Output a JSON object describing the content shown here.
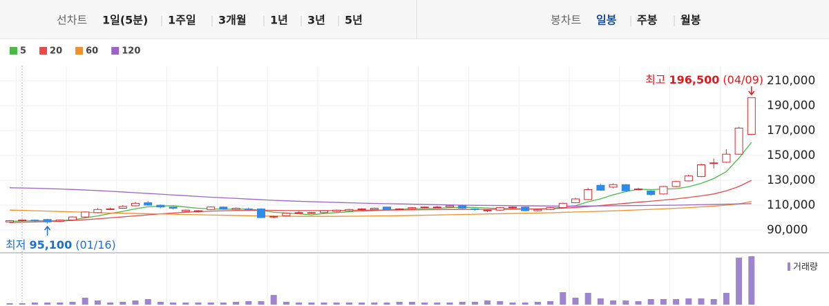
{
  "toolbar": {
    "line_chart": {
      "label": "선차트",
      "options": [
        "1일(5분)",
        "1주일",
        "3개월",
        "1년",
        "3년",
        "5년"
      ]
    },
    "candle_chart": {
      "label": "봉차트",
      "options": [
        "일봉",
        "주봉",
        "월봉"
      ],
      "selected": 0
    }
  },
  "chart_data": [
    {
      "type": "candlestick",
      "up_color": "#d9262f",
      "down_color": "#2f8be6",
      "ylim": [
        72000,
        222000
      ],
      "yticks": [
        {
          "value": 90000,
          "label": "90,000"
        },
        {
          "value": 110000,
          "label": "110,000"
        },
        {
          "value": 130000,
          "label": "130,000"
        },
        {
          "value": 150000,
          "label": "150,000"
        },
        {
          "value": 170000,
          "label": "170,000"
        },
        {
          "value": 190000,
          "label": "190,000"
        },
        {
          "value": 210000,
          "label": "210,000"
        }
      ],
      "grid": true,
      "open": [
        96500,
        97500,
        98000,
        98500,
        97000,
        98000,
        100500,
        104000,
        107000,
        107500,
        109500,
        112000,
        110000,
        108500,
        105000,
        105000,
        106500,
        108500,
        106500,
        107000,
        107000,
        100500,
        101500,
        104000,
        104000,
        104000,
        105000,
        105500,
        106500,
        106500,
        108500,
        106500,
        107000,
        108000,
        108500,
        108500,
        109500,
        107000,
        105500,
        106000,
        108000,
        108500,
        105500,
        106500,
        108000,
        112000,
        114500,
        126000,
        124500,
        126500,
        123000,
        121500,
        119000,
        125000,
        129500,
        133000,
        144000,
        144500,
        151000,
        167000
      ],
      "high": [
        98000,
        98500,
        98500,
        99000,
        98500,
        101000,
        105000,
        107500,
        108000,
        110000,
        112500,
        113500,
        110500,
        109000,
        106500,
        106000,
        109000,
        109000,
        108000,
        108000,
        107500,
        101500,
        104000,
        105000,
        104500,
        106000,
        106500,
        107000,
        107500,
        108000,
        109000,
        107500,
        108500,
        109000,
        109500,
        110000,
        110500,
        107500,
        106500,
        108500,
        109000,
        109000,
        107000,
        108500,
        112000,
        116000,
        124000,
        127000,
        127500,
        127000,
        124000,
        122000,
        125500,
        129500,
        134500,
        143500,
        147500,
        155000,
        173000,
        196500
      ],
      "low": [
        96000,
        97000,
        97000,
        95100,
        96500,
        97500,
        100000,
        103500,
        106000,
        107000,
        109000,
        109500,
        107500,
        106500,
        104500,
        104000,
        106000,
        106500,
        106000,
        106000,
        99500,
        99500,
        101000,
        103500,
        103000,
        103500,
        104500,
        105000,
        106000,
        106000,
        106000,
        106000,
        106500,
        107500,
        108000,
        108000,
        107000,
        105500,
        104500,
        105500,
        107000,
        105000,
        105000,
        106000,
        107500,
        111500,
        114000,
        121500,
        123500,
        121000,
        122000,
        117500,
        118500,
        124500,
        129000,
        132500,
        139500,
        144000,
        150500,
        166500
      ],
      "close": [
        97500,
        98000,
        97800,
        96500,
        98000,
        100500,
        104500,
        106500,
        107000,
        109000,
        111500,
        110000,
        108500,
        107500,
        106000,
        105500,
        108500,
        107000,
        107500,
        106500,
        100000,
        101000,
        103500,
        104000,
        104000,
        105500,
        106000,
        106500,
        107000,
        107500,
        106500,
        107000,
        108000,
        108500,
        108500,
        109500,
        107500,
        106500,
        106000,
        108000,
        108500,
        105500,
        106500,
        108000,
        111500,
        115000,
        122500,
        122000,
        126500,
        121500,
        123000,
        118500,
        125000,
        129000,
        133500,
        142500,
        144000,
        151000,
        172000,
        196500
      ],
      "series": [
        {
          "name": "5",
          "color": "#4cb848",
          "values": [
            97000,
            97300,
            97500,
            97400,
            97600,
            98200,
            99800,
            101300,
            103300,
            105000,
            107100,
            108700,
            109200,
            109600,
            108500,
            107500,
            107000,
            106700,
            106800,
            106800,
            105800,
            104300,
            103700,
            103000,
            102200,
            103300,
            104000,
            104700,
            105200,
            105600,
            106200,
            106700,
            107000,
            107300,
            107400,
            108000,
            108300,
            108100,
            107700,
            107300,
            107200,
            107100,
            106900,
            107200,
            108500,
            109500,
            112700,
            115100,
            118300,
            120900,
            122800,
            122500,
            122900,
            123200,
            124800,
            127500,
            131400,
            137000,
            147800,
            160500
          ]
        },
        {
          "name": "20",
          "color": "#e8494a",
          "values": [
            96000,
            96300,
            96500,
            96800,
            97200,
            97700,
            98300,
            99000,
            99800,
            100600,
            101400,
            102200,
            103000,
            103700,
            104300,
            104800,
            105200,
            105500,
            105700,
            105800,
            105900,
            105800,
            105700,
            105600,
            105600,
            105600,
            105700,
            105800,
            105900,
            106000,
            106000,
            106100,
            106200,
            106300,
            106400,
            106500,
            106500,
            106600,
            106600,
            106700,
            106700,
            106800,
            106900,
            107200,
            107600,
            108100,
            108800,
            109700,
            110600,
            111500,
            112400,
            113200,
            114100,
            115000,
            116200,
            117500,
            119000,
            121500,
            125000,
            130000
          ]
        },
        {
          "name": "60",
          "color": "#f0902a",
          "values": [
            106000,
            105800,
            105500,
            105200,
            104900,
            104600,
            104300,
            104000,
            103700,
            103500,
            103300,
            103100,
            102900,
            102700,
            102500,
            102300,
            102100,
            101900,
            101700,
            101500,
            101300,
            101200,
            101100,
            101000,
            101000,
            101000,
            101000,
            101100,
            101200,
            101300,
            101400,
            101500,
            101700,
            101900,
            102100,
            102300,
            102500,
            102700,
            102900,
            103100,
            103300,
            103500,
            103700,
            103900,
            104200,
            104500,
            104800,
            105100,
            105400,
            105800,
            106200,
            106600,
            107000,
            107500,
            108000,
            108600,
            109200,
            110000,
            111000,
            113000
          ]
        },
        {
          "name": "120",
          "color": "#9d63c9",
          "values": [
            124000,
            123800,
            123600,
            123300,
            123000,
            122600,
            122200,
            121700,
            121200,
            120600,
            120000,
            119400,
            118800,
            118200,
            117600,
            117000,
            116400,
            115900,
            115400,
            114900,
            114400,
            113900,
            113500,
            113100,
            112800,
            112500,
            112200,
            111900,
            111600,
            111400,
            111200,
            111000,
            110800,
            110600,
            110400,
            110200,
            110000,
            109900,
            109800,
            109700,
            109600,
            109500,
            109400,
            109300,
            109200,
            109200,
            109300,
            109400,
            109500,
            109600,
            109700,
            109800,
            109900,
            110000,
            110200,
            110400,
            110600,
            110800,
            111000,
            111200
          ]
        }
      ],
      "high_annotation": {
        "label": "최고",
        "value": "196,500",
        "date": "(04/09)",
        "index": 59
      },
      "low_annotation": {
        "label": "최저",
        "value": "95,100",
        "date": "(01/16)",
        "index": 3
      }
    },
    {
      "type": "bar",
      "name": "거래량",
      "color": "#9e86cf",
      "ylim": [
        0,
        75
      ],
      "values": [
        2,
        2,
        3,
        3,
        3,
        4,
        10,
        6,
        3,
        4,
        6,
        8,
        4,
        3,
        3,
        3,
        3,
        3,
        4,
        5,
        5,
        14,
        4,
        3,
        3,
        3,
        3,
        3,
        3,
        3,
        3,
        4,
        4,
        3,
        3,
        3,
        4,
        4,
        6,
        5,
        3,
        3,
        4,
        5,
        18,
        10,
        17,
        9,
        6,
        6,
        5,
        8,
        8,
        8,
        9,
        9,
        8,
        17,
        68,
        70
      ]
    }
  ]
}
